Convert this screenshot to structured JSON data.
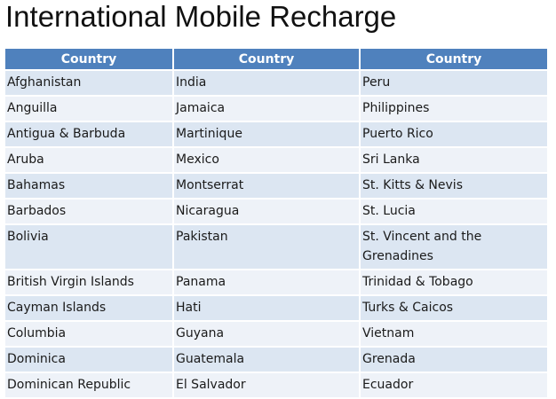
{
  "title": "International Mobile Recharge",
  "table": {
    "headers": [
      "Country",
      "Country",
      "Country"
    ],
    "rows": [
      [
        "Afghanistan",
        "India",
        "Peru"
      ],
      [
        "Anguilla",
        "Jamaica",
        "Philippines"
      ],
      [
        "Antigua & Barbuda",
        "Martinique",
        "Puerto Rico"
      ],
      [
        "Aruba",
        "Mexico",
        "Sri Lanka"
      ],
      [
        "Bahamas",
        "Montserrat",
        "St. Kitts & Nevis"
      ],
      [
        "Barbados",
        "Nicaragua",
        "St. Lucia"
      ],
      [
        "Bolivia",
        "Pakistan",
        "St. Vincent and the Grenadines"
      ],
      [
        "British Virgin Islands",
        "Panama",
        "Trinidad & Tobago"
      ],
      [
        "Cayman Islands",
        "Hati",
        "Turks & Caicos"
      ],
      [
        "Columbia",
        "Guyana",
        "Vietnam"
      ],
      [
        "Dominica",
        "Guatemala",
        "Grenada"
      ],
      [
        "Dominican Republic",
        "El Salvador",
        "Ecuador"
      ]
    ]
  },
  "colors": {
    "header_bg": "#4f81bd",
    "row_odd_bg": "#dce6f2",
    "row_even_bg": "#eef2f8"
  }
}
